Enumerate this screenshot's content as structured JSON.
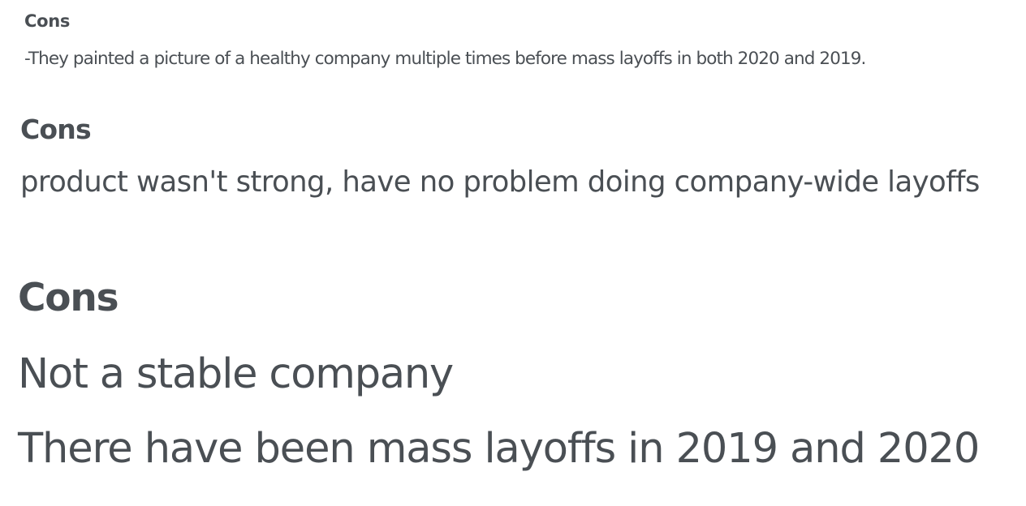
{
  "reviews": [
    {
      "heading": "Cons",
      "lines": [
        "-They painted a picture of a healthy company multiple times before mass layoffs in both 2020 and 2019."
      ]
    },
    {
      "heading": "Cons",
      "lines": [
        "product wasn't strong, have no problem doing company-wide layoffs"
      ]
    },
    {
      "heading": "Cons",
      "lines": [
        "Not a stable company",
        "There have been mass layoffs in 2019 and 2020"
      ]
    }
  ]
}
